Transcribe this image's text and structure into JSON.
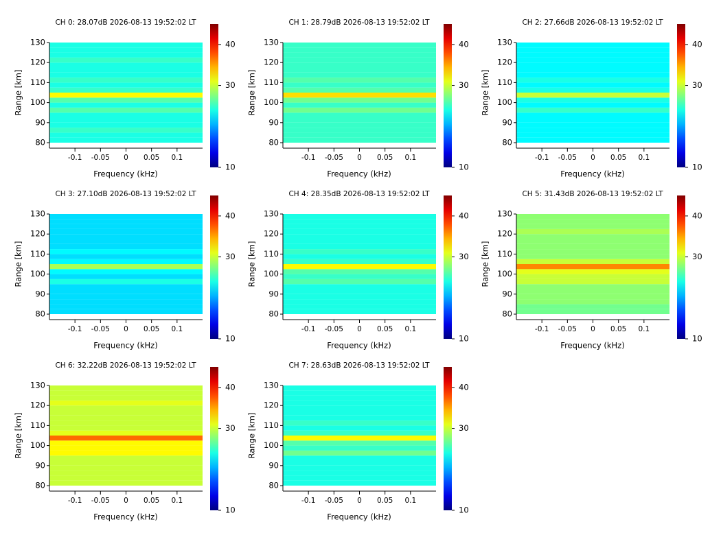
{
  "chart_data": [
    {
      "type": "heatmap",
      "title": "CH 0: 28.07dB 2026-08-13 19:52:02 LT",
      "x_label": "Frequency (kHz)",
      "y_label": "Range [km]",
      "colormap": "jet",
      "xlim": [
        -0.15,
        0.15
      ],
      "xticks": [
        -0.1,
        -0.05,
        0,
        0.05,
        0.1
      ],
      "ylim": [
        80,
        130
      ],
      "yticks": [
        80,
        90,
        100,
        110,
        120,
        130
      ],
      "ybins": [
        80,
        82.5,
        85,
        87.5,
        90,
        92.5,
        95,
        97.5,
        100,
        102.5,
        105,
        107.5,
        110,
        112.5,
        115,
        117.5,
        120,
        122.5,
        125,
        127.5,
        130
      ],
      "values": [
        24,
        24,
        25,
        24,
        24,
        24,
        26,
        24,
        26,
        32,
        25,
        24,
        25,
        24,
        24,
        24,
        25,
        24,
        24,
        24
      ],
      "clim": [
        10,
        45
      ],
      "cticks": [
        10,
        30,
        40
      ]
    },
    {
      "type": "heatmap",
      "title": "CH 1: 28.79dB 2026-08-13 19:52:02 LT",
      "x_label": "Frequency (kHz)",
      "y_label": "Range [km]",
      "colormap": "jet",
      "xlim": [
        -0.15,
        0.15
      ],
      "xticks": [
        -0.1,
        -0.05,
        0,
        0.05,
        0.1
      ],
      "ylim": [
        80,
        130
      ],
      "yticks": [
        80,
        90,
        100,
        110,
        120,
        130
      ],
      "ybins": [
        80,
        82.5,
        85,
        87.5,
        90,
        92.5,
        95,
        97.5,
        100,
        102.5,
        105,
        107.5,
        110,
        112.5,
        115,
        117.5,
        120,
        122.5,
        125,
        127.5,
        130
      ],
      "values": [
        25,
        25,
        25,
        25,
        25,
        25,
        27,
        25,
        27,
        33,
        26,
        25,
        26,
        25,
        25,
        25,
        25,
        25,
        25,
        25
      ],
      "clim": [
        10,
        45
      ],
      "cticks": [
        10,
        30,
        40
      ]
    },
    {
      "type": "heatmap",
      "title": "CH 2: 27.66dB 2026-08-13 19:52:02 LT",
      "x_label": "Frequency (kHz)",
      "y_label": "Range [km]",
      "colormap": "jet",
      "xlim": [
        -0.15,
        0.15
      ],
      "xticks": [
        -0.1,
        -0.05,
        0,
        0.05,
        0.1
      ],
      "ylim": [
        80,
        130
      ],
      "yticks": [
        80,
        90,
        100,
        110,
        120,
        130
      ],
      "ybins": [
        80,
        82.5,
        85,
        87.5,
        90,
        92.5,
        95,
        97.5,
        100,
        102.5,
        105,
        107.5,
        110,
        112.5,
        115,
        117.5,
        120,
        122.5,
        125,
        127.5,
        130
      ],
      "values": [
        23,
        23,
        23,
        23,
        23,
        23,
        25,
        23,
        24,
        30,
        24,
        23,
        24,
        23,
        23,
        23,
        23,
        23,
        23,
        23
      ],
      "clim": [
        10,
        45
      ],
      "cticks": [
        10,
        30,
        40
      ]
    },
    {
      "type": "heatmap",
      "title": "CH 3: 27.10dB 2026-08-13 19:52:02 LT",
      "x_label": "Frequency (kHz)",
      "y_label": "Range [km]",
      "colormap": "jet",
      "xlim": [
        -0.15,
        0.15
      ],
      "xticks": [
        -0.1,
        -0.05,
        0,
        0.05,
        0.1
      ],
      "ylim": [
        80,
        130
      ],
      "yticks": [
        80,
        90,
        100,
        110,
        120,
        130
      ],
      "ybins": [
        80,
        82.5,
        85,
        87.5,
        90,
        92.5,
        95,
        97.5,
        100,
        102.5,
        105,
        107.5,
        110,
        112.5,
        115,
        117.5,
        120,
        122.5,
        125,
        127.5,
        130
      ],
      "values": [
        22,
        22,
        22,
        22,
        22,
        22,
        24,
        22,
        23,
        29,
        23,
        22,
        23,
        22,
        22,
        22,
        22,
        22,
        22,
        22
      ],
      "clim": [
        10,
        45
      ],
      "cticks": [
        10,
        30,
        40
      ]
    },
    {
      "type": "heatmap",
      "title": "CH 4: 28.35dB 2026-08-13 19:52:02 LT",
      "x_label": "Frequency (kHz)",
      "y_label": "Range [km]",
      "colormap": "jet",
      "xlim": [
        -0.15,
        0.15
      ],
      "xticks": [
        -0.1,
        -0.05,
        0,
        0.05,
        0.1
      ],
      "ylim": [
        80,
        130
      ],
      "yticks": [
        80,
        90,
        100,
        110,
        120,
        130
      ],
      "ybins": [
        80,
        82.5,
        85,
        87.5,
        90,
        92.5,
        95,
        97.5,
        100,
        102.5,
        105,
        107.5,
        110,
        112.5,
        115,
        117.5,
        120,
        122.5,
        125,
        127.5,
        130
      ],
      "values": [
        24,
        24,
        24,
        24,
        24,
        24,
        26,
        25,
        26,
        32,
        25,
        24,
        25,
        24,
        24,
        24,
        24,
        24,
        24,
        24
      ],
      "clim": [
        10,
        45
      ],
      "cticks": [
        10,
        30,
        40
      ]
    },
    {
      "type": "heatmap",
      "title": "CH 5: 31.43dB 2026-08-13 19:52:02 LT",
      "x_label": "Frequency (kHz)",
      "y_label": "Range [km]",
      "colormap": "jet",
      "xlim": [
        -0.15,
        0.15
      ],
      "xticks": [
        -0.1,
        -0.05,
        0,
        0.05,
        0.1
      ],
      "ylim": [
        80,
        130
      ],
      "yticks": [
        80,
        90,
        100,
        110,
        120,
        130
      ],
      "ybins": [
        80,
        82.5,
        85,
        87.5,
        90,
        92.5,
        95,
        97.5,
        100,
        102.5,
        105,
        107.5,
        110,
        112.5,
        115,
        117.5,
        120,
        122.5,
        125,
        127.5,
        130
      ],
      "values": [
        27,
        27,
        28,
        28,
        28,
        28,
        30,
        30,
        31,
        36,
        30,
        28,
        28,
        28,
        28,
        28,
        29,
        28,
        28,
        28
      ],
      "clim": [
        10,
        45
      ],
      "cticks": [
        10,
        30,
        40
      ]
    },
    {
      "type": "heatmap",
      "title": "CH 6: 32.22dB 2026-08-13 19:52:02 LT",
      "x_label": "Frequency (kHz)",
      "y_label": "Range [km]",
      "colormap": "jet",
      "xlim": [
        -0.15,
        0.15
      ],
      "xticks": [
        -0.1,
        -0.05,
        0,
        0.05,
        0.1
      ],
      "ylim": [
        80,
        130
      ],
      "yticks": [
        80,
        90,
        100,
        110,
        120,
        130
      ],
      "ybins": [
        80,
        82.5,
        85,
        87.5,
        90,
        92.5,
        95,
        97.5,
        100,
        102.5,
        105,
        107.5,
        110,
        112.5,
        115,
        117.5,
        120,
        122.5,
        125,
        127.5,
        130
      ],
      "values": [
        30,
        30,
        30,
        30,
        30,
        30,
        32,
        32,
        32,
        37,
        31,
        30,
        30,
        30,
        30,
        30,
        31,
        30,
        30,
        30
      ],
      "clim": [
        10,
        45
      ],
      "cticks": [
        10,
        30,
        40
      ]
    },
    {
      "type": "heatmap",
      "title": "CH 7: 28.63dB 2026-08-13 19:52:02 LT",
      "x_label": "Frequency (kHz)",
      "y_label": "Range [km]",
      "colormap": "jet",
      "xlim": [
        -0.15,
        0.15
      ],
      "xticks": [
        -0.1,
        -0.05,
        0,
        0.05,
        0.1
      ],
      "ylim": [
        80,
        130
      ],
      "yticks": [
        80,
        90,
        100,
        110,
        120,
        130
      ],
      "ybins": [
        80,
        82.5,
        85,
        87.5,
        90,
        92.5,
        95,
        97.5,
        100,
        102.5,
        105,
        107.5,
        110,
        112.5,
        115,
        117.5,
        120,
        122.5,
        125,
        127.5,
        130
      ],
      "values": [
        24,
        24,
        24,
        24,
        24,
        24,
        27,
        25,
        26,
        32,
        25,
        24,
        25,
        24,
        24,
        24,
        24,
        24,
        24,
        24
      ],
      "clim": [
        10,
        45
      ],
      "cticks": [
        10,
        30,
        40
      ]
    }
  ]
}
